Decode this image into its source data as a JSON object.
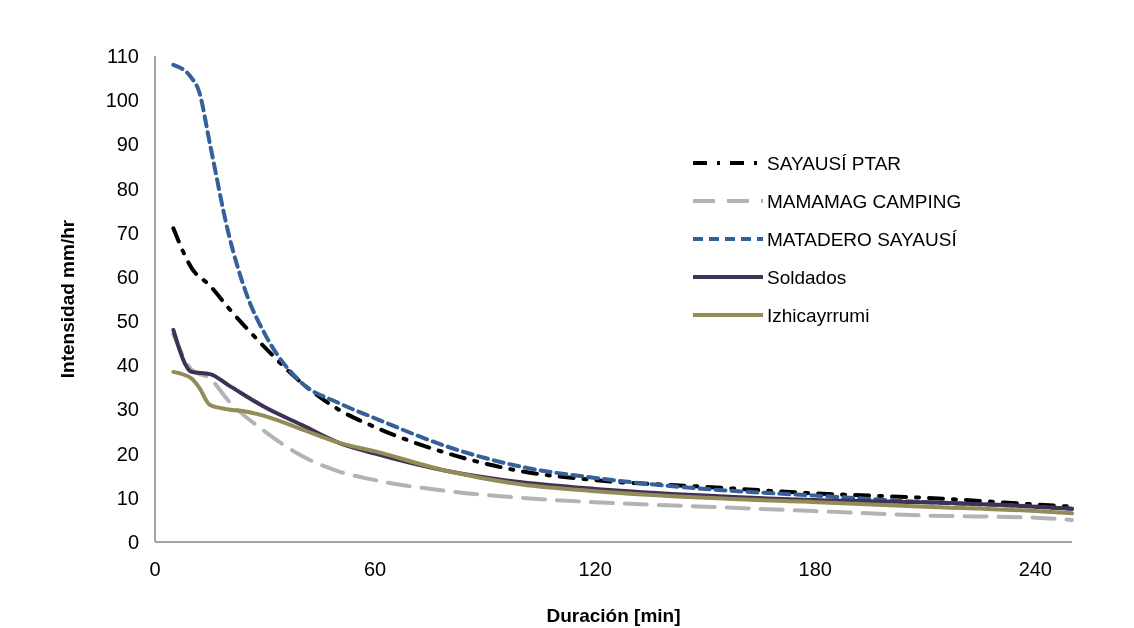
{
  "chart_data": {
    "type": "line",
    "xlabel": "Duración [min]",
    "ylabel": "Intensidad mm/hr",
    "xlim": [
      0,
      250
    ],
    "xticks": [
      0,
      60,
      120,
      180,
      240
    ],
    "ylim": [
      0,
      110
    ],
    "yticks": [
      0,
      10,
      20,
      30,
      40,
      50,
      60,
      70,
      80,
      90,
      100,
      110
    ],
    "grid": false,
    "legend": "right",
    "marker": "none",
    "series": [
      {
        "name": "SAYAUSÍ PTAR",
        "color": "#000000",
        "line_style": "dashdot",
        "x": [
          5,
          10,
          15,
          20,
          30,
          40,
          50,
          60,
          80,
          100,
          120,
          150,
          180,
          210,
          240,
          250
        ],
        "values": [
          71,
          62,
          58,
          53,
          44,
          36,
          30,
          26,
          20,
          16,
          14,
          12.5,
          11,
          10,
          8.5,
          8
        ]
      },
      {
        "name": "MAMAMAG CAMPING",
        "color": "#b3b3b3",
        "line_style": "longdash",
        "x": [
          5,
          10,
          15,
          20,
          30,
          40,
          50,
          60,
          80,
          100,
          120,
          150,
          180,
          210,
          240,
          250
        ],
        "values": [
          47,
          39,
          37,
          32,
          25,
          19.5,
          16,
          14,
          11.5,
          10,
          9,
          8,
          7,
          6,
          5.5,
          5
        ]
      },
      {
        "name": "MATADERO SAYAUSÍ",
        "color": "#34619a",
        "line_style": "dashed",
        "x": [
          5,
          10,
          12,
          15,
          20,
          25,
          30,
          40,
          50,
          60,
          80,
          100,
          120,
          150,
          180,
          210,
          240,
          250
        ],
        "values": [
          108,
          105,
          102,
          90,
          70,
          56,
          47,
          36,
          31.5,
          28,
          21.5,
          17,
          14.5,
          12,
          10.5,
          9,
          8,
          7.5
        ]
      },
      {
        "name": "Soldados",
        "color": "#3f3254",
        "line_style": "solid",
        "x": [
          5,
          10,
          15,
          20,
          30,
          40,
          50,
          60,
          80,
          100,
          120,
          150,
          180,
          210,
          240,
          250
        ],
        "values": [
          48,
          38.5,
          38,
          35.5,
          30.5,
          26.5,
          22.5,
          20,
          16,
          13.5,
          12,
          10.5,
          9.5,
          9,
          8,
          7.5
        ]
      },
      {
        "name": "Izhicayrrumi",
        "color": "#938b58",
        "line_style": "solid",
        "x": [
          5,
          10,
          12,
          15,
          20,
          25,
          30,
          40,
          50,
          60,
          80,
          100,
          120,
          150,
          180,
          210,
          240,
          250
        ],
        "values": [
          38.5,
          37,
          35,
          31,
          30,
          29.5,
          28.5,
          25.5,
          22.5,
          20.5,
          16,
          13,
          11.5,
          10,
          9,
          8,
          7,
          6.5
        ]
      }
    ]
  }
}
